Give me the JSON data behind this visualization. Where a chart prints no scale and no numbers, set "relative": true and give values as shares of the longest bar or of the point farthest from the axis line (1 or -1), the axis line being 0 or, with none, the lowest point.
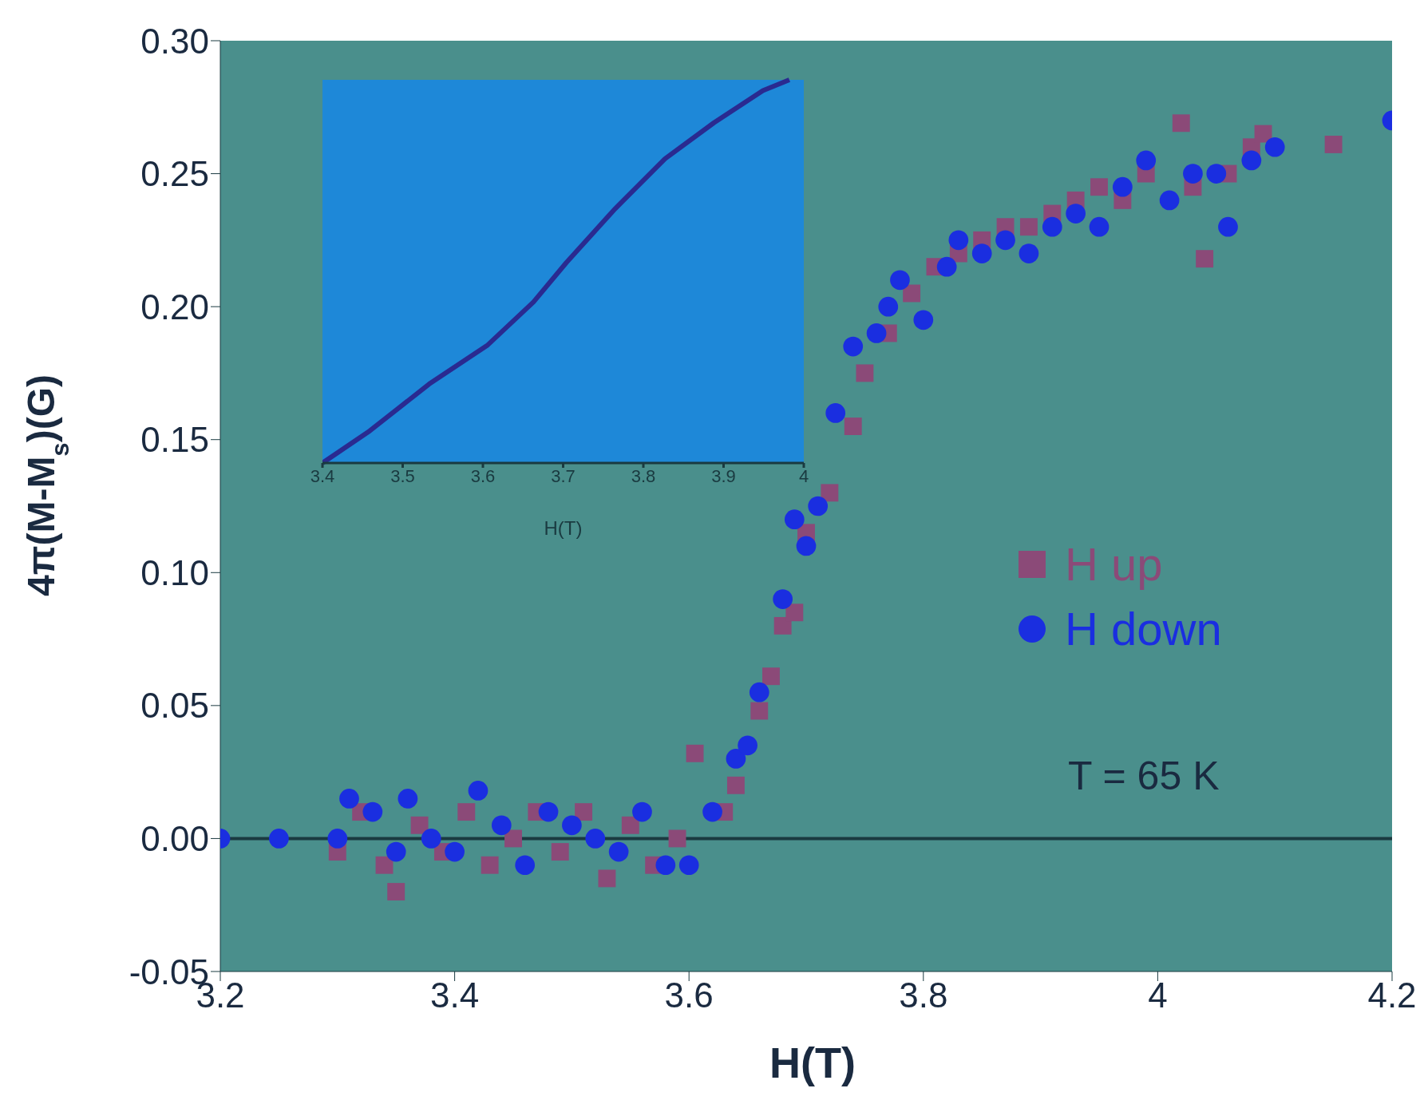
{
  "chart_data": [
    {
      "type": "scatter",
      "xlabel": "H(T)",
      "ylabel": "4π(M-M$_{s}$)(G)",
      "xlim": [
        3.2,
        4.2
      ],
      "xticks": [
        3.2,
        3.4,
        3.6,
        3.8,
        4,
        4.2
      ],
      "ylim": [
        -0.05,
        0.3
      ],
      "yticks": [
        {
          "value": -0.05,
          "label": "-0.05"
        },
        {
          "value": 0,
          "label": "0.00"
        },
        {
          "value": 0.05,
          "label": "0.05"
        },
        {
          "value": 0.1,
          "label": "0.10"
        },
        {
          "value": 0.15,
          "label": "0.15"
        },
        {
          "value": 0.2,
          "label": "0.20"
        },
        {
          "value": 0.25,
          "label": "0.25"
        },
        {
          "value": 0.3,
          "label": "0.30"
        }
      ],
      "grid": false,
      "legend": "right",
      "ref_lines": [
        {
          "axis": "y",
          "value": 0,
          "color": "#1a3a40"
        }
      ],
      "annotations": [
        "T = 65 K"
      ],
      "series": [
        {
          "name": "H up",
          "color": "#8b4a78",
          "marker": "square",
          "x": [
            3.3,
            3.32,
            3.34,
            3.35,
            3.37,
            3.39,
            3.41,
            3.43,
            3.45,
            3.47,
            3.49,
            3.51,
            3.53,
            3.55,
            3.57,
            3.59,
            3.605,
            3.63,
            3.64,
            3.66,
            3.67,
            3.68,
            3.69,
            3.7,
            3.72,
            3.74,
            3.75,
            3.77,
            3.79,
            3.81,
            3.83,
            3.85,
            3.87,
            3.89,
            3.91,
            3.93,
            3.95,
            3.97,
            3.99,
            4.02,
            4.03,
            4.04,
            4.06,
            4.08,
            4.09,
            4.15
          ],
          "values": [
            -0.005,
            0.01,
            -0.01,
            -0.02,
            0.005,
            -0.005,
            0.01,
            -0.01,
            0.0,
            0.01,
            -0.005,
            0.01,
            -0.015,
            0.005,
            -0.01,
            0.0,
            0.032,
            0.01,
            0.02,
            0.048,
            0.061,
            0.08,
            0.085,
            0.115,
            0.13,
            0.155,
            0.175,
            0.19,
            0.205,
            0.215,
            0.22,
            0.225,
            0.23,
            0.23,
            0.235,
            0.24,
            0.245,
            0.24,
            0.25,
            0.269,
            0.245,
            0.218,
            0.25,
            0.26,
            0.265,
            0.261
          ]
        },
        {
          "name": "H down",
          "color": "#1a2ee0",
          "marker": "circle",
          "x": [
            3.2,
            3.25,
            3.3,
            3.31,
            3.33,
            3.35,
            3.36,
            3.38,
            3.4,
            3.42,
            3.44,
            3.46,
            3.48,
            3.5,
            3.52,
            3.54,
            3.56,
            3.58,
            3.6,
            3.62,
            3.64,
            3.65,
            3.66,
            3.68,
            3.69,
            3.7,
            3.71,
            3.725,
            3.74,
            3.76,
            3.77,
            3.78,
            3.8,
            3.82,
            3.83,
            3.85,
            3.87,
            3.89,
            3.91,
            3.93,
            3.95,
            3.97,
            3.99,
            4.01,
            4.03,
            4.05,
            4.06,
            4.08,
            4.1,
            4.2
          ],
          "values": [
            0.0,
            0.0,
            0.0,
            0.015,
            0.01,
            -0.005,
            0.015,
            0.0,
            -0.005,
            0.018,
            0.005,
            -0.01,
            0.01,
            0.005,
            0.0,
            -0.005,
            0.01,
            -0.01,
            -0.01,
            0.01,
            0.03,
            0.035,
            0.055,
            0.09,
            0.12,
            0.11,
            0.125,
            0.16,
            0.185,
            0.19,
            0.2,
            0.21,
            0.195,
            0.215,
            0.225,
            0.22,
            0.225,
            0.22,
            0.23,
            0.235,
            0.23,
            0.245,
            0.255,
            0.24,
            0.25,
            0.25,
            0.23,
            0.255,
            0.26,
            0.27
          ]
        }
      ]
    },
    {
      "type": "line",
      "relative": true,
      "xlabel": "H(T)",
      "xlim": [
        3.4,
        4.0
      ],
      "xticks": [
        3.4,
        3.5,
        3.6,
        3.7,
        3.8,
        3.9,
        4
      ],
      "series": [
        {
          "color": "#2a2a90",
          "x": [
            3.4,
            3.459,
            3.533,
            3.606,
            3.663,
            3.704,
            3.765,
            3.827,
            3.888,
            3.949,
            3.982
          ],
          "values": [
            0,
            0.084,
            0.206,
            0.308,
            0.42,
            0.523,
            0.664,
            0.794,
            0.888,
            0.972,
            1.0
          ]
        }
      ]
    }
  ]
}
